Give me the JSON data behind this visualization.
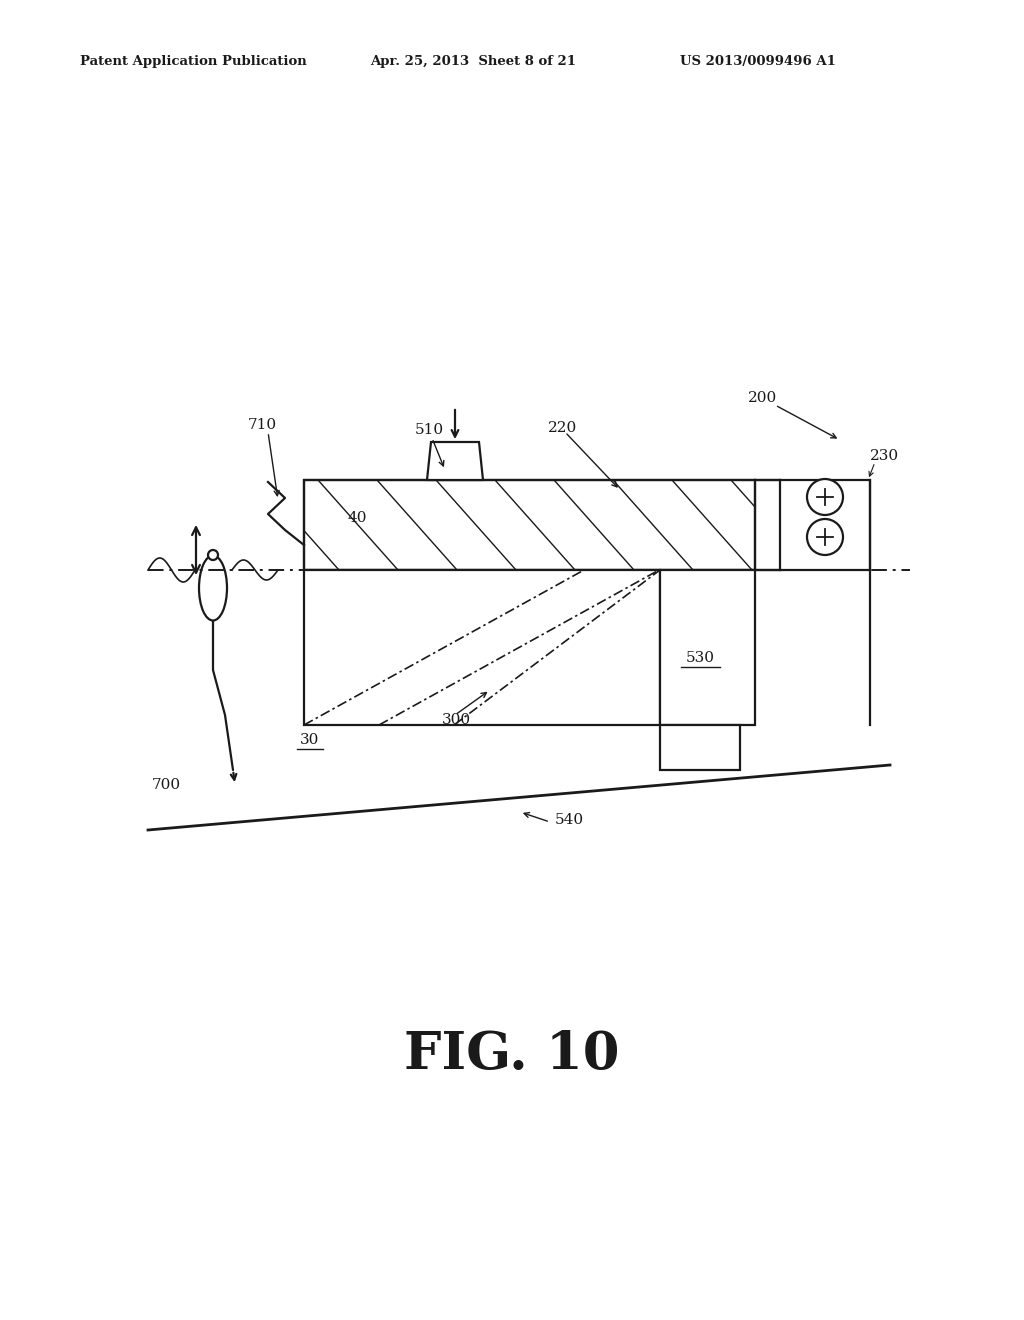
{
  "header_left": "Patent Application Publication",
  "header_mid": "Apr. 25, 2013  Sheet 8 of 21",
  "header_right": "US 2013/0099496 A1",
  "fig_label": "FIG. 10",
  "bg_color": "#ffffff",
  "lc": "#1a1a1a"
}
